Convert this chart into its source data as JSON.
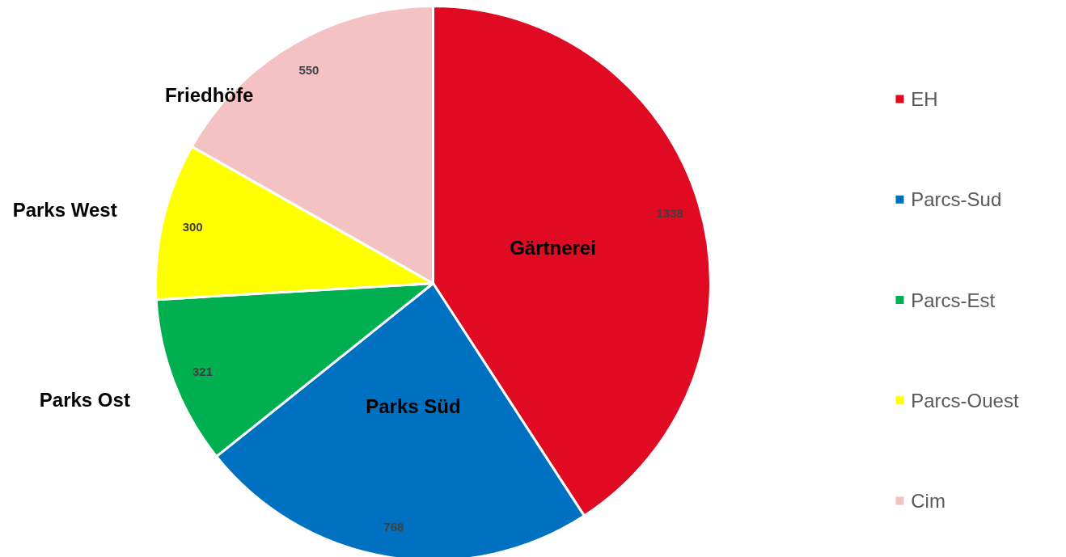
{
  "chart_data": {
    "type": "pie",
    "categories": [
      "EH",
      "Parcs-Sud",
      "Parcs-Est",
      "Parcs-Ouest",
      "Cim"
    ],
    "values": [
      1338,
      768,
      321,
      300,
      550
    ],
    "colors": [
      "#e00a22",
      "#0070c0",
      "#00b050",
      "#ffff00",
      "#f4c2c2"
    ],
    "data_labels": true,
    "legend": "right",
    "annotations": [
      {
        "text": "Gärtnerei",
        "x": "EH"
      },
      {
        "text": "Parks Süd",
        "x": "Parcs-Sud"
      },
      {
        "text": "Parks Ost",
        "x": "Parcs-Est"
      },
      {
        "text": "Parks West",
        "x": "Parcs-Ouest"
      },
      {
        "text": "Friedhöfe",
        "x": "Cim"
      }
    ]
  }
}
